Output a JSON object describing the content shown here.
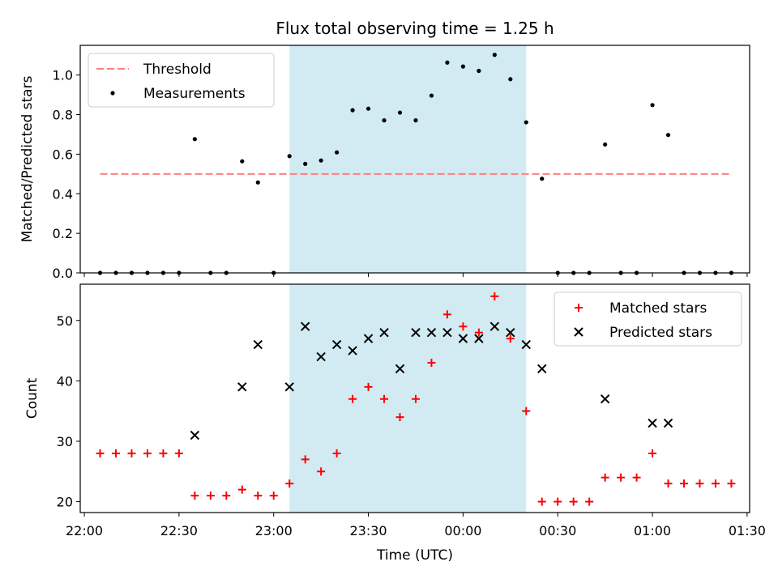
{
  "chart_data": [
    {
      "type": "scatter",
      "title": "Flux total observing time = 1.25 h",
      "xlabel": "",
      "ylabel": "Matched/Predicted stars",
      "ylim": [
        0,
        1.15
      ],
      "yticks": [
        "0.0",
        "0.2",
        "0.4",
        "0.6",
        "0.8",
        "1.0"
      ],
      "shaded_region": {
        "x_start": "23:05",
        "x_end": "00:20",
        "color": "#add8e6"
      },
      "threshold": {
        "name": "Threshold",
        "value": 0.5,
        "x_start": "22:05",
        "x_end": "01:25",
        "color": "#ff7f7f"
      },
      "series": [
        {
          "name": "Measurements",
          "marker": "dot",
          "color": "#000000",
          "x": [
            "22:05",
            "22:10",
            "22:15",
            "22:20",
            "22:25",
            "22:30",
            "22:35",
            "22:40",
            "22:45",
            "22:50",
            "22:55",
            "23:00",
            "23:05",
            "23:10",
            "23:15",
            "23:20",
            "23:25",
            "23:30",
            "23:35",
            "23:40",
            "23:45",
            "23:50",
            "23:55",
            "00:00",
            "00:05",
            "00:10",
            "00:15",
            "00:20",
            "00:25",
            "00:30",
            "00:35",
            "00:40",
            "00:45",
            "00:50",
            "00:55",
            "01:00",
            "01:05",
            "01:10",
            "01:15",
            "01:20",
            "01:25"
          ],
          "y": [
            0,
            0,
            0,
            0,
            0,
            0,
            0.676,
            0,
            0,
            0.564,
            0.457,
            0,
            0.59,
            0.551,
            0.568,
            0.609,
            0.822,
            0.83,
            0.771,
            0.81,
            0.771,
            0.896,
            1.063,
            1.043,
            1.021,
            1.102,
            0.979,
            0.761,
            0.476,
            0,
            0,
            0,
            0.649,
            0,
            0,
            0.848,
            0.697,
            0,
            0,
            0,
            0
          ]
        }
      ],
      "legend": {
        "position": "top-left",
        "entries": [
          "Threshold",
          "Measurements"
        ]
      }
    },
    {
      "type": "scatter",
      "title": "",
      "xlabel": "Time (UTC)",
      "ylabel": "Count",
      "ylim": [
        18.2,
        56
      ],
      "yticks": [
        "20",
        "30",
        "40",
        "50"
      ],
      "xticks": [
        "22:00",
        "22:30",
        "23:00",
        "23:30",
        "00:00",
        "00:30",
        "01:00",
        "01:30"
      ],
      "shaded_region": {
        "x_start": "23:05",
        "x_end": "00:20",
        "color": "#add8e6"
      },
      "series": [
        {
          "name": "Matched stars",
          "marker": "plus",
          "color": "#ff0000",
          "x": [
            "22:05",
            "22:10",
            "22:15",
            "22:20",
            "22:25",
            "22:30",
            "22:35",
            "22:40",
            "22:45",
            "22:50",
            "22:55",
            "23:00",
            "23:05",
            "23:10",
            "23:15",
            "23:20",
            "23:25",
            "23:30",
            "23:35",
            "23:40",
            "23:45",
            "23:50",
            "23:55",
            "00:00",
            "00:05",
            "00:10",
            "00:15",
            "00:20",
            "00:25",
            "00:30",
            "00:35",
            "00:40",
            "00:45",
            "00:50",
            "00:55",
            "01:00",
            "01:05",
            "01:10",
            "01:15",
            "01:20",
            "01:25"
          ],
          "y": [
            28,
            28,
            28,
            28,
            28,
            28,
            21,
            21,
            21,
            22,
            21,
            21,
            23,
            27,
            25,
            28,
            37,
            39,
            37,
            34,
            37,
            43,
            51,
            49,
            48,
            54,
            47,
            35,
            20,
            20,
            20,
            20,
            24,
            24,
            24,
            28,
            23,
            23,
            23,
            23,
            23
          ]
        },
        {
          "name": "Predicted stars",
          "marker": "x",
          "color": "#000000",
          "x": [
            "22:35",
            "22:50",
            "22:55",
            "23:05",
            "23:10",
            "23:15",
            "23:20",
            "23:25",
            "23:30",
            "23:35",
            "23:40",
            "23:45",
            "23:50",
            "23:55",
            "00:00",
            "00:05",
            "00:10",
            "00:15",
            "00:20",
            "00:25",
            "00:45",
            "01:00",
            "01:05"
          ],
          "y": [
            31,
            39,
            46,
            39,
            49,
            44,
            46,
            45,
            47,
            48,
            42,
            48,
            48,
            48,
            47,
            47,
            49,
            48,
            46,
            42,
            37,
            33,
            33
          ]
        }
      ],
      "legend": {
        "position": "top-right",
        "entries": [
          "Matched stars",
          "Predicted stars"
        ]
      }
    }
  ]
}
